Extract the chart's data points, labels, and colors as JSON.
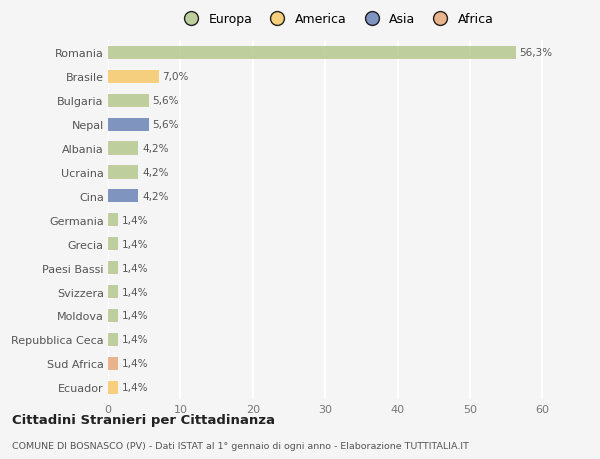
{
  "countries": [
    "Romania",
    "Brasile",
    "Bulgaria",
    "Nepal",
    "Albania",
    "Ucraina",
    "Cina",
    "Germania",
    "Grecia",
    "Paesi Bassi",
    "Svizzera",
    "Moldova",
    "Repubblica Ceca",
    "Sud Africa",
    "Ecuador"
  ],
  "values": [
    56.3,
    7.0,
    5.6,
    5.6,
    4.2,
    4.2,
    4.2,
    1.4,
    1.4,
    1.4,
    1.4,
    1.4,
    1.4,
    1.4,
    1.4
  ],
  "labels": [
    "56,3%",
    "7,0%",
    "5,6%",
    "5,6%",
    "4,2%",
    "4,2%",
    "4,2%",
    "1,4%",
    "1,4%",
    "1,4%",
    "1,4%",
    "1,4%",
    "1,4%",
    "1,4%",
    "1,4%"
  ],
  "colors": [
    "#b5c98e",
    "#f5c869",
    "#b5c98e",
    "#6b83b5",
    "#b5c98e",
    "#b5c98e",
    "#6b83b5",
    "#b5c98e",
    "#b5c98e",
    "#b5c98e",
    "#b5c98e",
    "#b5c98e",
    "#b5c98e",
    "#e8a87c",
    "#f5c869"
  ],
  "legend_labels": [
    "Europa",
    "America",
    "Asia",
    "Africa"
  ],
  "legend_colors": [
    "#b5c98e",
    "#f5c869",
    "#6b83b5",
    "#e8a87c"
  ],
  "xlim": [
    0,
    63
  ],
  "xticks": [
    0,
    10,
    20,
    30,
    40,
    50,
    60
  ],
  "title1": "Cittadini Stranieri per Cittadinanza",
  "title2": "COMUNE DI BOSNASCO (PV) - Dati ISTAT al 1° gennaio di ogni anno - Elaborazione TUTTITALIA.IT",
  "background_color": "#f5f5f5",
  "bar_height": 0.55
}
